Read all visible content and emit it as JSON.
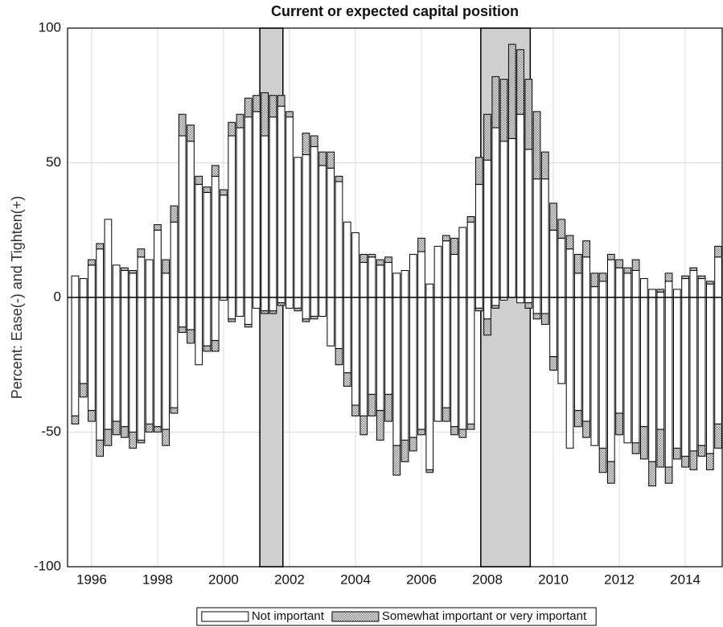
{
  "chart_data": {
    "type": "bar",
    "title": "Current or expected capital position",
    "ylabel": "Percent:  Ease(-) and Tighten(+)",
    "x": [
      1995.5,
      1995.75,
      1996,
      1996.25,
      1996.5,
      1996.75,
      1997,
      1997.25,
      1997.5,
      1997.75,
      1998,
      1998.25,
      1998.5,
      1998.75,
      1999,
      1999.25,
      1999.5,
      1999.75,
      2000,
      2000.25,
      2000.5,
      2000.75,
      2001,
      2001.25,
      2001.5,
      2001.75,
      2002,
      2002.25,
      2002.5,
      2002.75,
      2003,
      2003.25,
      2003.5,
      2003.75,
      2004,
      2004.25,
      2004.5,
      2004.75,
      2005,
      2005.25,
      2005.5,
      2005.75,
      2006,
      2006.25,
      2006.5,
      2006.75,
      2007,
      2007.25,
      2007.5,
      2007.75,
      2008,
      2008.25,
      2008.5,
      2008.75,
      2009,
      2009.25,
      2009.5,
      2009.75,
      2010,
      2010.25,
      2010.5,
      2010.75,
      2011,
      2011.25,
      2011.5,
      2011.75,
      2012,
      2012.25,
      2012.5,
      2012.75,
      2013,
      2013.25,
      2013.5,
      2013.75,
      2014,
      2014.25,
      2014.5,
      2014.75,
      2015
    ],
    "xlim": [
      1995.27,
      2015.12
    ],
    "xticks": [
      1996,
      1998,
      2000,
      2002,
      2004,
      2006,
      2008,
      2010,
      2012,
      2014
    ],
    "ylim": [
      -100,
      100
    ],
    "yticks": [
      -100,
      -50,
      0,
      50,
      100
    ],
    "grid": true,
    "recessions": [
      [
        2001.1,
        2001.8
      ],
      [
        2007.8,
        2009.3
      ]
    ],
    "legend": "bottom",
    "series": [
      {
        "name": "Not important",
        "color": "#ffffff",
        "tighten": [
          8,
          7,
          12,
          18,
          29,
          12,
          10,
          9,
          15,
          14,
          25,
          9,
          28,
          60,
          58,
          42,
          39,
          45,
          38,
          60,
          63,
          67,
          69,
          60,
          67,
          71,
          67,
          52,
          53,
          56,
          49,
          48,
          43,
          28,
          24,
          13,
          15,
          12,
          13,
          9,
          10,
          16,
          17,
          5,
          19,
          21,
          16,
          26,
          28,
          42,
          51,
          63,
          58,
          59,
          68,
          55,
          44,
          44,
          25,
          22,
          18,
          9,
          15,
          4,
          6,
          14,
          11,
          9,
          10,
          7,
          3,
          2,
          6,
          3,
          7,
          10,
          7,
          5,
          15
        ],
        "ease": [
          -44,
          -32,
          -42,
          -53,
          -49,
          -46,
          -48,
          -50,
          -53,
          -47,
          -48,
          -49,
          -41,
          -11,
          -12,
          -25,
          -18,
          -16,
          -1,
          -8,
          -7,
          -10,
          -4,
          -5,
          -5,
          -2,
          -4,
          -4,
          -8,
          -7,
          -7,
          -18,
          -19,
          -28,
          -40,
          -44,
          -36,
          -42,
          -36,
          -55,
          -53,
          -52,
          -49,
          -64,
          -46,
          -41,
          -48,
          -49,
          -47,
          -4,
          -8,
          -3,
          -1,
          0,
          -2,
          -2,
          -6,
          -6,
          -22,
          -32,
          -56,
          -42,
          -46,
          -55,
          -56,
          -61,
          -43,
          -54,
          -54,
          -48,
          -61,
          -49,
          -63,
          -56,
          -59,
          -57,
          -55,
          -58,
          -47
        ]
      },
      {
        "name": "Somewhat important or very important",
        "color": "#8a8a8a",
        "tighten": [
          0,
          0,
          2,
          2,
          0,
          0,
          1,
          1,
          3,
          0,
          2,
          5,
          6,
          8,
          6,
          3,
          2,
          4,
          2,
          5,
          5,
          7,
          6,
          16,
          8,
          4,
          2,
          0,
          8,
          4,
          5,
          6,
          2,
          0,
          0,
          3,
          1,
          2,
          2,
          0,
          0,
          0,
          5,
          0,
          0,
          2,
          6,
          0,
          2,
          10,
          17,
          19,
          23,
          35,
          24,
          26,
          25,
          10,
          10,
          7,
          5,
          7,
          6,
          5,
          3,
          2,
          3,
          2,
          4,
          0,
          0,
          1,
          3,
          0,
          1,
          1,
          1,
          1,
          4
        ],
        "ease": [
          -3,
          -5,
          -4,
          -6,
          -6,
          -5,
          -4,
          -6,
          -1,
          -3,
          -2,
          -6,
          -2,
          -2,
          -5,
          0,
          -2,
          -4,
          0,
          -1,
          0,
          -1,
          0,
          -1,
          -1,
          -1,
          0,
          -1,
          -1,
          -1,
          0,
          0,
          -6,
          -5,
          -4,
          -7,
          -8,
          -11,
          -10,
          -11,
          -8,
          -5,
          -2,
          -1,
          0,
          -5,
          -3,
          -3,
          -2,
          -1,
          -6,
          -1,
          0,
          0,
          0,
          -2,
          -2,
          -4,
          -5,
          0,
          0,
          -6,
          -6,
          0,
          -9,
          -8,
          -8,
          0,
          -4,
          -12,
          -9,
          -14,
          -6,
          -4,
          -4,
          -7,
          -4,
          -6,
          -9
        ]
      }
    ]
  }
}
